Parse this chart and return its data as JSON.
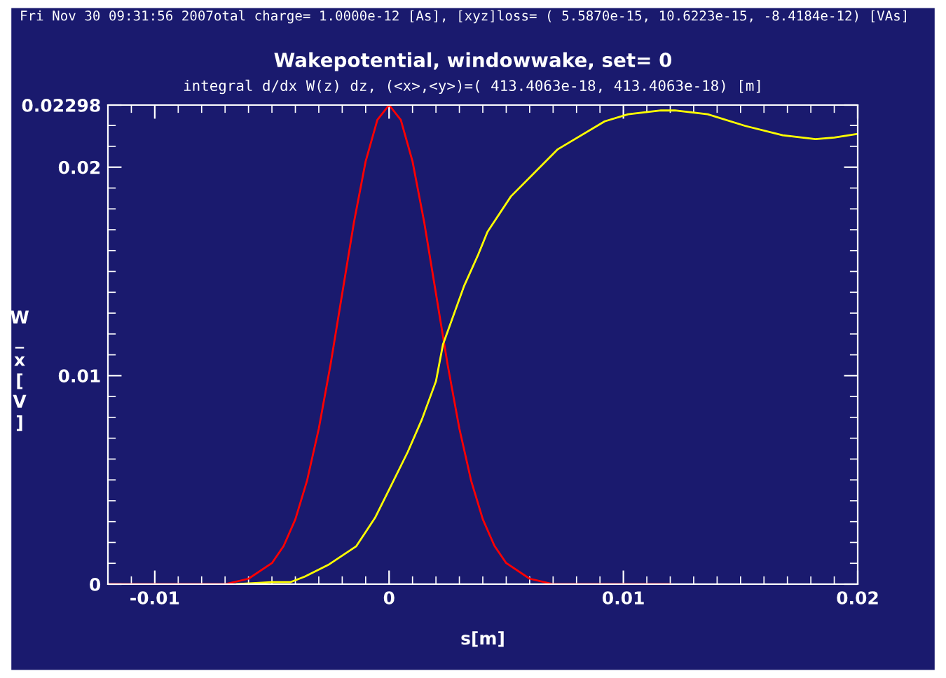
{
  "chart_data": {
    "type": "line",
    "title": "Wakepotential, windowwake, set= 0",
    "subtitle": "integral d/dx W(z) dz, (<x>,<y>)=( 413.4063e-18, 413.4063e-18) [m]",
    "annotations": [
      "Fri Nov 30 09:31:56 2007otal charge= 1.0000e-12 [As], [xyz]loss= ( 5.5870e-15, 10.6223e-15, -8.4184e-12) [VAs]"
    ],
    "xlabel": "s[m]",
    "ylabel": "W_x[V]",
    "xlim": [
      -0.012,
      0.02
    ],
    "ylim": [
      0,
      0.02298
    ],
    "xticks": [
      -0.01,
      0,
      0.01,
      0.02
    ],
    "yticks": [
      0,
      0.01,
      0.02,
      0.02298
    ],
    "grid": false,
    "legend": false,
    "marker": "none",
    "line_style": "solid",
    "series": [
      {
        "color": "#ff0000",
        "x": [
          -0.012,
          -0.011,
          -0.01,
          -0.009,
          -0.008,
          -0.007,
          -0.006,
          -0.005,
          -0.0045,
          -0.004,
          -0.0035,
          -0.003,
          -0.0025,
          -0.002,
          -0.0015,
          -0.001,
          -0.0005,
          0,
          0.0005,
          0.001,
          0.0015,
          0.002,
          0.0025,
          0.003,
          0.0035,
          0.004,
          0.0045,
          0.005,
          0.006,
          0.007,
          0.008,
          0.009,
          0.01,
          0.011,
          0.012
        ],
        "values": [
          0,
          0,
          0,
          0,
          0,
          0,
          0.00026,
          0.00101,
          0.00183,
          0.00311,
          0.00497,
          0.00746,
          0.01052,
          0.01394,
          0.01735,
          0.02028,
          0.02227,
          0.02298,
          0.02227,
          0.02028,
          0.01735,
          0.01394,
          0.01052,
          0.00746,
          0.00497,
          0.00311,
          0.00183,
          0.00101,
          0.00026,
          0,
          0,
          0,
          0,
          0,
          0
        ]
      },
      {
        "color": "#ffff00",
        "x": [
          -0.0065,
          -0.005,
          -0.0042,
          -0.0036,
          -0.0026,
          -0.0014,
          -0.0006,
          0,
          0.0008,
          0.0014,
          0.002,
          0.0023,
          0.0032,
          0.0038,
          0.0042,
          0.0052,
          0.0072,
          0.0092,
          0.0102,
          0.0116,
          0.0122,
          0.0136,
          0.0152,
          0.0168,
          0.0182,
          0.019,
          0.02
        ],
        "values": [
          0,
          0.0001,
          0.0001,
          0.00036,
          0.00092,
          0.00182,
          0.00318,
          0.00453,
          0.00635,
          0.0079,
          0.00973,
          0.0115,
          0.0143,
          0.0158,
          0.0169,
          0.0186,
          0.02086,
          0.0222,
          0.02254,
          0.02272,
          0.02272,
          0.02254,
          0.02198,
          0.02153,
          0.02135,
          0.02142,
          0.0216
        ]
      }
    ]
  }
}
